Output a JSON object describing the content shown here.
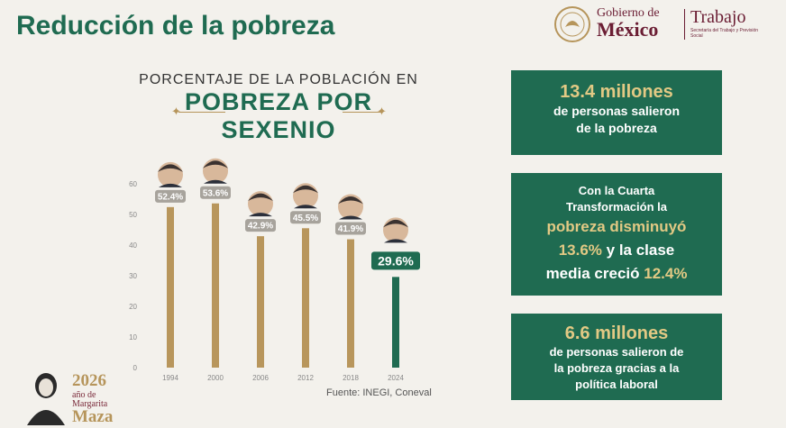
{
  "header": {
    "title": "Reducción de la pobreza"
  },
  "logo_gobierno": {
    "line1": "Gobierno de",
    "line2": "México"
  },
  "logo_trabajo": {
    "name": "Trabajo",
    "subtitle": "Secretaría del Trabajo y Previsión Social"
  },
  "chart_heading": {
    "line1": "PORCENTAJE DE LA POBLACIÓN EN",
    "line2": "POBREZA POR",
    "line3": "SEXENIO"
  },
  "chart_data": {
    "type": "bar",
    "categories": [
      "1994",
      "2000",
      "2006",
      "2012",
      "2018",
      "2024"
    ],
    "values": [
      52.4,
      53.6,
      42.9,
      45.5,
      41.9,
      29.6
    ],
    "value_labels": [
      "52.4%",
      "53.6%",
      "42.9%",
      "45.5%",
      "41.9%",
      "29.6%"
    ],
    "ylim": [
      0,
      60
    ],
    "yticks": [
      "0",
      "10",
      "20",
      "30",
      "40",
      "50",
      "60"
    ],
    "colors": {
      "past": "#b8965c",
      "current": "#1f6b51"
    },
    "grid": false
  },
  "source": "Fuente: INEGI, Coneval",
  "info_boxes": {
    "box1": {
      "highlight": "13.4 millones",
      "line1": "de personas salieron",
      "line2": "de la pobreza"
    },
    "box2": {
      "line1": "Con la Cuarta",
      "line2": "Transformación la",
      "hl1": "pobreza disminuyó",
      "mix1_hl": "13.6%",
      "mix1_txt": " y la clase",
      "mix2_txt": "media creció ",
      "mix2_hl": "12.4%"
    },
    "box3": {
      "highlight": "6.6 millones",
      "line1": "de personas salieron de",
      "line2": "la pobreza gracias a la",
      "line3": "política laboral"
    }
  },
  "footer_logo": {
    "year": "2026",
    "line1": "año de",
    "line2": "Margarita",
    "line3": "Maza"
  },
  "colors": {
    "green": "#1f6b51",
    "gold": "#b8965c",
    "maroon": "#6b1e34",
    "background": "#f3f1ec"
  }
}
